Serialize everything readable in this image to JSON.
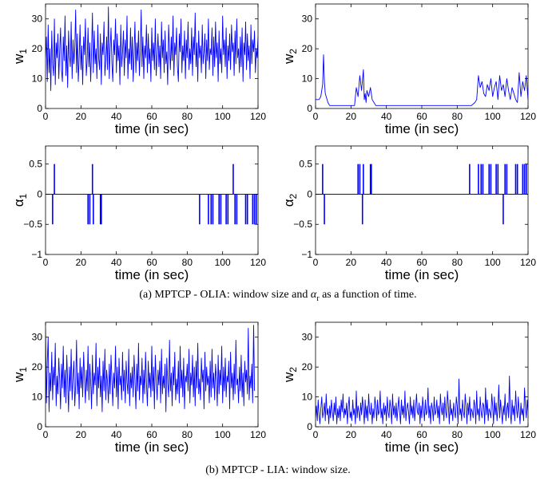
{
  "figure": {
    "caption_a_prefix": "(a) MPTCP - OLIA: window size and",
    "caption_a_symbol": "α",
    "caption_a_subscript": "r",
    "caption_a_suffix": "as a function of time.",
    "caption_b": "(b) MPTCP - LIA: window size."
  },
  "style": {
    "line_color": "#0000ff",
    "axis_color": "#000000"
  },
  "chart_data": [
    {
      "id": "a-w1",
      "type": "line",
      "xlabel": "time (in sec)",
      "ylabel": "w",
      "ylabel_sub": "1",
      "xlim": [
        0,
        120
      ],
      "ylim": [
        0,
        35
      ],
      "xticks": [
        0,
        20,
        40,
        60,
        80,
        100,
        120
      ],
      "yticks": [
        0,
        10,
        20,
        30
      ],
      "grid": false,
      "series": [
        {
          "dt": 0.5,
          "values": [
            17,
            24,
            9,
            28,
            12,
            20,
            6,
            26,
            15,
            11,
            30,
            8,
            22,
            17,
            25,
            10,
            19,
            27,
            13,
            9,
            24,
            16,
            31,
            11,
            21,
            7,
            26,
            18,
            14,
            29,
            10,
            23,
            15,
            20,
            33,
            12,
            25,
            9,
            17,
            28,
            13,
            21,
            8,
            24,
            18,
            30,
            11,
            16,
            27,
            14,
            22,
            9,
            19,
            32,
            12,
            26,
            15,
            20,
            10,
            28,
            17,
            13,
            25,
            8,
            22,
            18,
            29,
            11,
            16,
            24,
            13,
            34,
            10,
            20,
            27,
            15,
            9,
            23,
            18,
            30,
            12,
            25,
            16,
            21,
            8,
            28,
            14,
            19,
            26,
            11,
            23,
            17,
            31,
            10,
            20,
            15,
            27,
            13,
            24,
            9,
            18,
            29,
            12,
            22,
            16,
            26,
            11,
            19,
            33,
            14,
            24,
            10,
            21,
            17,
            28,
            12,
            25,
            15,
            20,
            9,
            27,
            16,
            22,
            13,
            30,
            11,
            18,
            25,
            14,
            21,
            10,
            29,
            17,
            23,
            12,
            26,
            15,
            19,
            8,
            28,
            20,
            13,
            24,
            16,
            31,
            11,
            22,
            18,
            27,
            14,
            9,
            25,
            19,
            30,
            12,
            21,
            16,
            26,
            10,
            23,
            17,
            29,
            13,
            20,
            15,
            27,
            11,
            24,
            18,
            32,
            14,
            22,
            9,
            26,
            17,
            21,
            12,
            28,
            15,
            19,
            25,
            10,
            23,
            16,
            30,
            13,
            20,
            18,
            27,
            11,
            24,
            14,
            29,
            17,
            22,
            9,
            26,
            15,
            20,
            12,
            31,
            18,
            23,
            14,
            27,
            10,
            21,
            16,
            25,
            13,
            28,
            19,
            22,
            11,
            26,
            15,
            30,
            17,
            20,
            12,
            24,
            14,
            27,
            9,
            22,
            18,
            29,
            13,
            25,
            16,
            21,
            10,
            28,
            15,
            23,
            19,
            26,
            12,
            20,
            17,
            24,
            14,
            30,
            11,
            22,
            16,
            27,
            13,
            25,
            18,
            21,
            10,
            26,
            15,
            19,
            12
          ]
        }
      ]
    },
    {
      "id": "a-w2",
      "type": "line",
      "xlabel": "time (in sec)",
      "ylabel": "w",
      "ylabel_sub": "2",
      "xlim": [
        0,
        120
      ],
      "ylim": [
        0,
        35
      ],
      "xticks": [
        0,
        20,
        40,
        60,
        80,
        100,
        120
      ],
      "yticks": [
        0,
        10,
        20,
        30
      ],
      "grid": false,
      "series": [
        {
          "x": [
            0,
            2,
            3,
            4,
            4.5,
            5,
            5.5,
            6,
            7,
            8,
            22,
            23,
            24,
            25,
            26,
            27,
            27.5,
            28,
            28.5,
            29,
            30,
            31,
            32,
            33,
            34,
            88,
            90,
            91,
            92,
            93,
            94,
            95,
            96,
            97,
            98,
            99,
            100,
            101,
            102,
            103,
            104,
            105,
            106,
            107,
            108,
            109,
            110,
            111,
            112,
            113,
            114,
            115,
            116,
            117,
            118,
            119,
            120
          ],
          "values": [
            3,
            3,
            4,
            8,
            18,
            9,
            5,
            4,
            2,
            1,
            1,
            7,
            4,
            11,
            6,
            13,
            3,
            5,
            2,
            6,
            4,
            7,
            3,
            2,
            1,
            1,
            2,
            3,
            11,
            7,
            9,
            5,
            4,
            8,
            6,
            10,
            4,
            7,
            9,
            3,
            11,
            6,
            8,
            4,
            10,
            6,
            3,
            7,
            5,
            3,
            2,
            12,
            4,
            9,
            6,
            11,
            3
          ]
        }
      ]
    },
    {
      "id": "a-alpha1",
      "type": "line",
      "xlabel": "time (in sec)",
      "ylabel": "α",
      "ylabel_sub": "1",
      "xlim": [
        0,
        120
      ],
      "ylim": [
        -1,
        0.8
      ],
      "xticks": [
        0,
        20,
        40,
        60,
        80,
        100,
        120
      ],
      "yticks": [
        -1,
        -0.5,
        0,
        0.5
      ],
      "ytick_labels": [
        "−1",
        "−0.5",
        "0",
        "0.5"
      ],
      "grid": false,
      "baseline": 0,
      "spikes": [
        {
          "x": 4,
          "y": -0.5
        },
        {
          "x": 5,
          "y": 0.5
        },
        {
          "x": 24,
          "y": -0.5
        },
        {
          "x": 25,
          "y": -0.5
        },
        {
          "x": 26.5,
          "y": 0.5
        },
        {
          "x": 27,
          "y": -0.5
        },
        {
          "x": 31,
          "y": -0.5
        },
        {
          "x": 31.5,
          "y": -0.5
        },
        {
          "x": 87,
          "y": -0.5
        },
        {
          "x": 92,
          "y": -0.5
        },
        {
          "x": 93.5,
          "y": -0.5
        },
        {
          "x": 94.5,
          "y": -0.5
        },
        {
          "x": 98,
          "y": -0.5
        },
        {
          "x": 99,
          "y": -0.5
        },
        {
          "x": 102,
          "y": -0.5
        },
        {
          "x": 103,
          "y": -0.5
        },
        {
          "x": 106,
          "y": 0.5
        },
        {
          "x": 107,
          "y": -0.5
        },
        {
          "x": 108,
          "y": -0.5
        },
        {
          "x": 113,
          "y": -0.5
        },
        {
          "x": 114,
          "y": -0.5
        },
        {
          "x": 117,
          "y": -0.5
        },
        {
          "x": 118,
          "y": -0.5
        },
        {
          "x": 119,
          "y": -0.5
        }
      ]
    },
    {
      "id": "a-alpha2",
      "type": "line",
      "xlabel": "time (in sec)",
      "ylabel": "α",
      "ylabel_sub": "2",
      "xlim": [
        0,
        120
      ],
      "ylim": [
        -1,
        0.8
      ],
      "xticks": [
        0,
        20,
        40,
        60,
        80,
        100,
        120
      ],
      "yticks": [
        -1,
        -0.5,
        0,
        0.5
      ],
      "ytick_labels": [
        "−1",
        "−0.5",
        "0",
        "0.5"
      ],
      "grid": false,
      "baseline": 0,
      "spikes": [
        {
          "x": 4,
          "y": 0.5
        },
        {
          "x": 5,
          "y": -0.5
        },
        {
          "x": 24,
          "y": 0.5
        },
        {
          "x": 25,
          "y": 0.5
        },
        {
          "x": 26.5,
          "y": -0.5
        },
        {
          "x": 27,
          "y": 0.5
        },
        {
          "x": 31,
          "y": 0.5
        },
        {
          "x": 31.5,
          "y": 0.5
        },
        {
          "x": 87,
          "y": 0.5
        },
        {
          "x": 92,
          "y": 0.5
        },
        {
          "x": 93.5,
          "y": 0.5
        },
        {
          "x": 94.5,
          "y": 0.5
        },
        {
          "x": 98,
          "y": 0.5
        },
        {
          "x": 99,
          "y": 0.5
        },
        {
          "x": 102,
          "y": 0.5
        },
        {
          "x": 103,
          "y": 0.5
        },
        {
          "x": 106,
          "y": -0.5
        },
        {
          "x": 107,
          "y": 0.5
        },
        {
          "x": 108,
          "y": 0.5
        },
        {
          "x": 113,
          "y": 0.5
        },
        {
          "x": 114,
          "y": 0.5
        },
        {
          "x": 117,
          "y": 0.5
        },
        {
          "x": 118,
          "y": 0.5
        },
        {
          "x": 119,
          "y": 0.5
        }
      ]
    },
    {
      "id": "b-w1",
      "type": "line",
      "xlabel": "time (in sec)",
      "ylabel": "w",
      "ylabel_sub": "1",
      "xlim": [
        0,
        120
      ],
      "ylim": [
        0,
        35
      ],
      "xticks": [
        0,
        20,
        40,
        60,
        80,
        100,
        120
      ],
      "yticks": [
        0,
        10,
        20,
        30
      ],
      "grid": false,
      "series": [
        {
          "dt": 0.5,
          "values": [
            33,
            8,
            22,
            30,
            5,
            18,
            12,
            25,
            9,
            20,
            14,
            28,
            7,
            17,
            11,
            23,
            16,
            6,
            21,
            13,
            27,
            10,
            19,
            8,
            24,
            15,
            5,
            20,
            12,
            26,
            9,
            17,
            22,
            7,
            14,
            29,
            11,
            18,
            6,
            23,
            13,
            20,
            10,
            25,
            16,
            8,
            19,
            12,
            27,
            9,
            21,
            15,
            6,
            24,
            11,
            18,
            14,
            28,
            7,
            20,
            13,
            23,
            10,
            17,
            5,
            22,
            12,
            26,
            9,
            19,
            15,
            8,
            21,
            11,
            24,
            16,
            7,
            18,
            13,
            27,
            10,
            20,
            6,
            23,
            14,
            17,
            9,
            25,
            12,
            19,
            8,
            22,
            15,
            11,
            26,
            7,
            18,
            13,
            20,
            10,
            24,
            16,
            6,
            21,
            12,
            28,
            9,
            17,
            14,
            23,
            8,
            19,
            11,
            25,
            15,
            7,
            22,
            13,
            18,
            10,
            27,
            12,
            20,
            6,
            24,
            16,
            9,
            19,
            14,
            22,
            8,
            26,
            11,
            17,
            13,
            21,
            5,
            23,
            15,
            10,
            29,
            12,
            18,
            7,
            20,
            14,
            25,
            9,
            16,
            11,
            22,
            8,
            27,
            13,
            19,
            10,
            23,
            6,
            17,
            15,
            21,
            12,
            26,
            8,
            18,
            14,
            24,
            10,
            20,
            7,
            22,
            13,
            28,
            11,
            16,
            9,
            23,
            15,
            19,
            6,
            25,
            12,
            20,
            14,
            17,
            8,
            22,
            10,
            26,
            13,
            18,
            9,
            21,
            16,
            7,
            24,
            11,
            19,
            14,
            27,
            8,
            20,
            12,
            23,
            10,
            17,
            15,
            22,
            6,
            25,
            13,
            18,
            9,
            21,
            11,
            29,
            14,
            16,
            8,
            20,
            12,
            24,
            10,
            18,
            7,
            22,
            15,
            19,
            11,
            33,
            9,
            17,
            13,
            21,
            8,
            34,
            12
          ]
        }
      ]
    },
    {
      "id": "b-w2",
      "type": "line",
      "xlabel": "time (in sec)",
      "ylabel": "w",
      "ylabel_sub": "2",
      "xlim": [
        0,
        120
      ],
      "ylim": [
        0,
        35
      ],
      "xticks": [
        0,
        20,
        40,
        60,
        80,
        100,
        120
      ],
      "yticks": [
        0,
        10,
        20,
        30
      ],
      "grid": false,
      "series": [
        {
          "dt": 0.5,
          "values": [
            3,
            7,
            2,
            9,
            4,
            1,
            6,
            10,
            3,
            5,
            8,
            2,
            11,
            4,
            6,
            1,
            7,
            3,
            9,
            5,
            2,
            8,
            4,
            10,
            1,
            6,
            3,
            7,
            2,
            9,
            5,
            11,
            3,
            6,
            4,
            8,
            1,
            7,
            10,
            3,
            5,
            2,
            9,
            4,
            6,
            1,
            12,
            3,
            7,
            5,
            2,
            8,
            4,
            10,
            6,
            1,
            9,
            3,
            7,
            2,
            11,
            5,
            4,
            8,
            1,
            6,
            3,
            10,
            7,
            2,
            9,
            4,
            5,
            12,
            3,
            6,
            1,
            8,
            4,
            7,
            2,
            10,
            5,
            3,
            9,
            6,
            1,
            11,
            4,
            7,
            3,
            8,
            2,
            6,
            10,
            5,
            1,
            9,
            4,
            7,
            3,
            12,
            2,
            6,
            8,
            5,
            1,
            10,
            4,
            7,
            3,
            9,
            2,
            6,
            11,
            5,
            4,
            8,
            1,
            7,
            3,
            10,
            6,
            2,
            9,
            4,
            5,
            13,
            3,
            7,
            1,
            8,
            6,
            2,
            10,
            4,
            5,
            9,
            3,
            7,
            1,
            11,
            6,
            4,
            8,
            2,
            10,
            5,
            3,
            12,
            7,
            1,
            9,
            4,
            6,
            2,
            8,
            5,
            3,
            10,
            7,
            1,
            16,
            4,
            6,
            2,
            9,
            5,
            3,
            11,
            7,
            1,
            8,
            4,
            10,
            2,
            6,
            5,
            3,
            9,
            7,
            1,
            12,
            4,
            6,
            2,
            10,
            5,
            3,
            8,
            7,
            1,
            13,
            4,
            9,
            2,
            6,
            5,
            3,
            11,
            7,
            1,
            10,
            4,
            8,
            2,
            6,
            14,
            3,
            9,
            5,
            1,
            7,
            4,
            11,
            2,
            6,
            8,
            3,
            17,
            5,
            1,
            9,
            4,
            7,
            2,
            12,
            6,
            3,
            10,
            5,
            1,
            8,
            4,
            6,
            2,
            13,
            7,
            3,
            9,
            5,
            1,
            11,
            4,
            6
          ]
        }
      ]
    }
  ]
}
